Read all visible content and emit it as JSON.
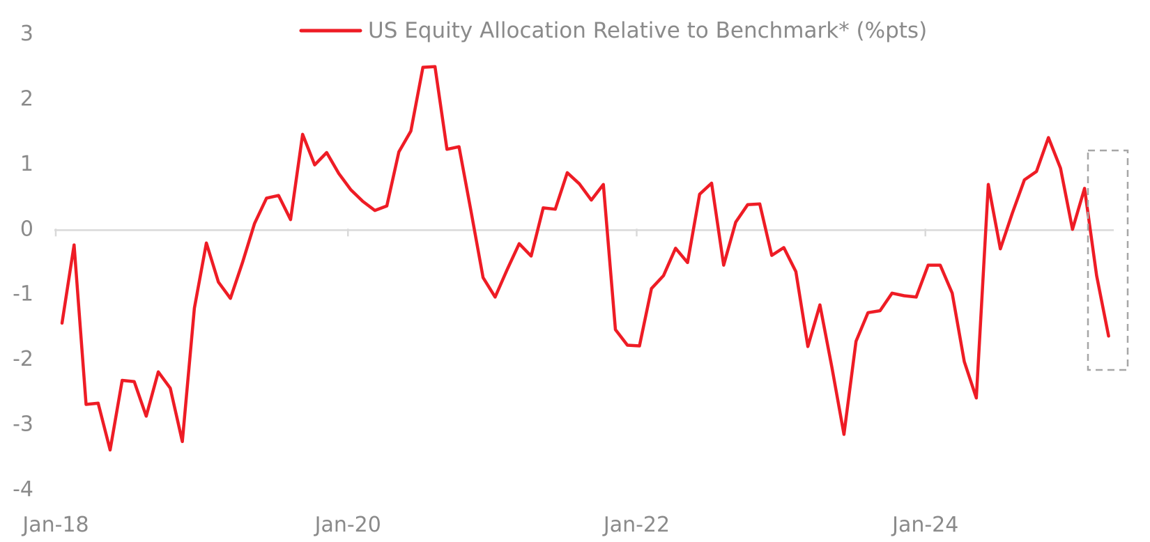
{
  "chart_data": {
    "type": "line",
    "series": [
      {
        "name": "US Equity Allocation Relative to Benchmark* (%pts)",
        "color": "#ee1c25",
        "values": [
          -1.45,
          -0.25,
          -2.7,
          -2.68,
          -3.4,
          -2.33,
          -2.35,
          -2.88,
          -2.2,
          -2.45,
          -3.27,
          -1.22,
          -0.22,
          -0.82,
          -1.07,
          -0.52,
          0.08,
          0.47,
          0.51,
          0.14,
          1.45,
          0.98,
          1.17,
          0.85,
          0.6,
          0.42,
          0.28,
          0.35,
          1.18,
          1.5,
          2.48,
          2.49,
          1.22,
          1.26,
          0.27,
          -0.75,
          -1.05,
          -0.63,
          -0.23,
          -0.42,
          0.32,
          0.3,
          0.86,
          0.69,
          0.44,
          0.68,
          -1.55,
          -1.79,
          -1.8,
          -0.92,
          -0.72,
          -0.3,
          -0.52,
          0.53,
          0.7,
          -0.56,
          0.1,
          0.37,
          0.38,
          -0.41,
          -0.29,
          -0.66,
          -1.81,
          -1.17,
          -2.13,
          -3.16,
          -1.73,
          -1.29,
          -1.26,
          -0.99,
          -1.03,
          -1.05,
          -0.56,
          -0.56,
          -0.99,
          -2.04,
          -2.6,
          0.68,
          -0.31,
          0.24,
          0.75,
          0.88,
          1.4,
          0.93,
          -0.01,
          0.62,
          -0.72,
          -1.65
        ]
      }
    ],
    "x_start": "Jan-18",
    "x_tick_labels": [
      "Jan-18",
      "Jan-20",
      "Jan-22",
      "Jan-24"
    ],
    "y_tick_labels": [
      "3",
      "2",
      "1",
      "0",
      "-1",
      "-2",
      "-3",
      "-4"
    ],
    "ylim": [
      -4,
      3
    ],
    "title": "",
    "xlabel": "",
    "ylabel": "",
    "grid": false,
    "legend_position": "top-center",
    "annotation": "dashed box highlighting latest readings",
    "highlight_box_color": "#a6a6a6"
  }
}
